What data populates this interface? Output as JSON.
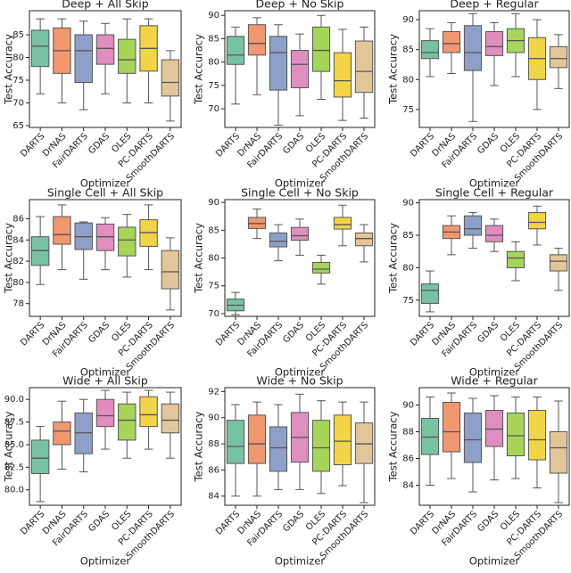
{
  "chart_data": [
    {
      "type": "box",
      "title": "Deep + All Skip",
      "x_label": "Optimizer",
      "y_label": "Test Accuracy",
      "categories": [
        "DARTS",
        "DrNAS",
        "FairDARTS",
        "GDAS",
        "OLES",
        "PC-DARTS",
        "SmoothDARTS"
      ],
      "colors": [
        "#78c2a4",
        "#f0976f",
        "#8ea0c8",
        "#e08ebf",
        "#a6d55a",
        "#f2d447",
        "#e2c69a"
      ],
      "values": [
        [
          72,
          78,
          82.5,
          86,
          88.5
        ],
        [
          70,
          76.5,
          81.5,
          86.5,
          88.5
        ],
        [
          68.5,
          74.5,
          81.5,
          85,
          88
        ],
        [
          72,
          78.5,
          82,
          85,
          87.5
        ],
        [
          70,
          76.5,
          79.5,
          84,
          88.5
        ],
        [
          70,
          77,
          82,
          87,
          88.5
        ],
        [
          66,
          71.5,
          74.5,
          79.5,
          81.5
        ]
      ],
      "ylim": [
        64.6,
        90.3
      ],
      "yticks": [
        65,
        70,
        75,
        80,
        85
      ]
    },
    {
      "type": "box",
      "title": "Deep + No Skip",
      "x_label": "Optimizer",
      "y_label": "Test Accuracy",
      "categories": [
        "DARTS",
        "DrNAS",
        "FairDARTS",
        "GDAS",
        "OLES",
        "PC-DARTS",
        "SmoothDARTS"
      ],
      "colors": [
        "#78c2a4",
        "#f0976f",
        "#8ea0c8",
        "#e08ebf",
        "#a6d55a",
        "#f2d447",
        "#e2c69a"
      ],
      "values": [
        [
          71,
          79.5,
          81.5,
          85.5,
          87.5
        ],
        [
          73,
          81.5,
          84,
          88,
          89.5
        ],
        [
          66.5,
          74,
          82,
          85.5,
          88
        ],
        [
          68.5,
          74.5,
          79.5,
          82.5,
          86
        ],
        [
          72,
          78,
          82.5,
          87.5,
          90
        ],
        [
          67.5,
          72.5,
          76,
          82,
          87
        ],
        [
          68,
          73.5,
          78,
          84.5,
          87.5
        ]
      ],
      "ylim": [
        66,
        91
      ],
      "yticks": [
        70,
        75,
        80,
        85,
        90
      ]
    },
    {
      "type": "box",
      "title": "Deep + Regular",
      "x_label": "Optimizer",
      "y_label": "Test Accuracy",
      "categories": [
        "DARTS",
        "DrNAS",
        "FairDARTS",
        "GDAS",
        "OLES",
        "PC-DARTS",
        "SmoothDARTS"
      ],
      "colors": [
        "#78c2a4",
        "#f0976f",
        "#8ea0c8",
        "#e08ebf",
        "#a6d55a",
        "#f2d447",
        "#e2c69a"
      ],
      "values": [
        [
          80.5,
          83.5,
          84.5,
          86.5,
          88.5
        ],
        [
          81,
          84.5,
          86,
          88,
          89.5
        ],
        [
          73,
          81.5,
          84.5,
          89,
          91
        ],
        [
          79,
          84,
          85.5,
          88,
          89.5
        ],
        [
          80.5,
          84.5,
          86.5,
          88.5,
          91
        ],
        [
          75,
          80,
          83.5,
          87,
          90
        ],
        [
          78.5,
          82,
          83.5,
          85.5,
          87.5
        ]
      ],
      "ylim": [
        72,
        91.5
      ],
      "yticks": [
        75,
        80,
        85,
        90
      ]
    },
    {
      "type": "box",
      "title": "Single Cell + All Skip",
      "x_label": "Optimizer",
      "y_label": "Test Accuracy",
      "categories": [
        "DARTS",
        "DrNAS",
        "FairDARTS",
        "GDAS",
        "OLES",
        "PC-DARTS",
        "SmoothDARTS"
      ],
      "colors": [
        "#78c2a4",
        "#f0976f",
        "#8ea0c8",
        "#e08ebf",
        "#a6d55a",
        "#f2d447",
        "#e2c69a"
      ],
      "values": [
        [
          79.8,
          81.6,
          83,
          84.3,
          86.2
        ],
        [
          81.2,
          83.6,
          84.5,
          86.2,
          87.3
        ],
        [
          80.3,
          83.1,
          84.3,
          85.6,
          85.7
        ],
        [
          81.2,
          83,
          84.3,
          85.5,
          86.1
        ],
        [
          80.5,
          82.5,
          84,
          85.2,
          86.4
        ],
        [
          81.2,
          83.4,
          84.7,
          85.9,
          87.3
        ],
        [
          77.4,
          79.4,
          81,
          83,
          84.2
        ]
      ],
      "ylim": [
        76.8,
        87.8
      ],
      "yticks": [
        78,
        80,
        82,
        84,
        86
      ]
    },
    {
      "type": "box",
      "title": "Single Cell + No Skip",
      "x_label": "Optimizer",
      "y_label": "Test Accuracy",
      "categories": [
        "DARTS",
        "DrNAS",
        "FairDARTS",
        "GDAS",
        "OLES",
        "PC-DARTS",
        "SmoothDARTS"
      ],
      "colors": [
        "#78c2a4",
        "#f0976f",
        "#8ea0c8",
        "#e08ebf",
        "#a6d55a",
        "#f2d447",
        "#e2c69a"
      ],
      "values": [
        [
          69.8,
          70.5,
          71.5,
          72.6,
          73.8
        ],
        [
          83.5,
          85.3,
          86.2,
          87.3,
          88.8
        ],
        [
          79.5,
          82,
          83,
          84.5,
          86
        ],
        [
          80.5,
          83.2,
          84,
          85.5,
          87
        ],
        [
          75.3,
          77.3,
          78,
          79.2,
          80.5
        ],
        [
          82.2,
          85.2,
          86,
          87.3,
          89.5
        ],
        [
          79.3,
          82.2,
          83.5,
          84.5,
          86
        ]
      ],
      "ylim": [
        69.5,
        90.5
      ],
      "yticks": [
        70,
        75,
        80,
        85,
        90
      ]
    },
    {
      "type": "box",
      "title": "Single Cell + Regular",
      "x_label": "Optimizer",
      "y_label": "Test Accuracy",
      "categories": [
        "DARTS",
        "DrNAS",
        "FairDARTS",
        "GDAS",
        "OLES",
        "PC-DARTS",
        "SmoothDARTS"
      ],
      "colors": [
        "#78c2a4",
        "#f0976f",
        "#8ea0c8",
        "#e08ebf",
        "#a6d55a",
        "#f2d447",
        "#e2c69a"
      ],
      "values": [
        [
          73.2,
          74.5,
          76.5,
          77.5,
          79.5
        ],
        [
          82,
          84.5,
          85.5,
          86.5,
          88
        ],
        [
          83,
          85,
          86,
          88,
          88.5
        ],
        [
          82.5,
          84,
          85,
          86.5,
          87.5
        ],
        [
          78,
          80,
          81.5,
          82.5,
          84
        ],
        [
          83.5,
          86,
          87,
          88.5,
          89.5
        ],
        [
          76.5,
          79.5,
          81,
          82,
          83
        ]
      ],
      "ylim": [
        72.5,
        90.5
      ],
      "yticks": [
        75,
        80,
        85,
        90
      ]
    },
    {
      "type": "box",
      "title": "Wide + All Skip",
      "x_label": "Optimizer",
      "y_label": "Test Accuracy",
      "categories": [
        "DARTS",
        "DrNAS",
        "FairDARTS",
        "GDAS",
        "OLES",
        "PC-DARTS",
        "SmoothDARTS"
      ],
      "colors": [
        "#78c2a4",
        "#f0976f",
        "#8ea0c8",
        "#e08ebf",
        "#a6d55a",
        "#f2d447",
        "#e2c69a"
      ],
      "values": [
        [
          78.7,
          81.8,
          83.5,
          85.5,
          87
        ],
        [
          82.3,
          85,
          86.5,
          87.5,
          89.8
        ],
        [
          82,
          84,
          86.3,
          88.5,
          90
        ],
        [
          84.5,
          87,
          88.2,
          90,
          91
        ],
        [
          83.5,
          85.5,
          87.7,
          89.5,
          90.8
        ],
        [
          84.5,
          87,
          88.3,
          90.3,
          91
        ],
        [
          83.5,
          86.3,
          87.7,
          89.5,
          90.8
        ]
      ],
      "ylim": [
        78.3,
        91.3
      ],
      "yticks": [
        {
          "value": 80,
          "label": "80.0"
        },
        82.5,
        {
          "value": 85,
          "label": "85.0"
        },
        87.5,
        {
          "value": 90,
          "label": "90.0"
        }
      ]
    },
    {
      "type": "box",
      "title": "Wide + No Skip",
      "x_label": "Optimizer",
      "y_label": "Test Accuracy",
      "categories": [
        "DARTS",
        "DrNAS",
        "FairDARTS",
        "GDAS",
        "OLES",
        "PC-DARTS",
        "SmoothDARTS"
      ],
      "colors": [
        "#78c2a4",
        "#f0976f",
        "#8ea0c8",
        "#e08ebf",
        "#a6d55a",
        "#f2d447",
        "#e2c69a"
      ],
      "values": [
        [
          84,
          86.5,
          87.8,
          89.8,
          91
        ],
        [
          84,
          86.5,
          88,
          90.2,
          91.2
        ],
        [
          84.5,
          85.9,
          87.7,
          89.3,
          91
        ],
        [
          84.5,
          86.6,
          88.5,
          90.4,
          91.8
        ],
        [
          84.2,
          85.9,
          87.7,
          89.8,
          91.3
        ],
        [
          84.8,
          86.4,
          88.2,
          90.2,
          91.2
        ],
        [
          83.5,
          86.5,
          88,
          89.6,
          91.2
        ]
      ],
      "ylim": [
        83.3,
        92.3
      ],
      "yticks": [
        84,
        86,
        88,
        90,
        92
      ]
    },
    {
      "type": "box",
      "title": "Wide + Regular",
      "x_label": "Optimizer",
      "y_label": "Test Accuracy",
      "categories": [
        "DARTS",
        "DrNAS",
        "FairDARTS",
        "GDAS",
        "OLES",
        "PC-DARTS",
        "SmoothDARTS"
      ],
      "colors": [
        "#78c2a4",
        "#f0976f",
        "#8ea0c8",
        "#e08ebf",
        "#a6d55a",
        "#f2d447",
        "#e2c69a"
      ],
      "values": [
        [
          84,
          86.3,
          87.6,
          89,
          90.6
        ],
        [
          84.5,
          86.5,
          88,
          90.2,
          90.9
        ],
        [
          83.5,
          85.7,
          87.4,
          89.4,
          90.5
        ],
        [
          84.4,
          86.9,
          88.2,
          89.6,
          90.7
        ],
        [
          84.5,
          86.2,
          87.7,
          89.4,
          90.6
        ],
        [
          83.8,
          85.9,
          87.4,
          89.6,
          90.6
        ],
        [
          82.7,
          84.9,
          86.8,
          88,
          90.3
        ]
      ],
      "ylim": [
        82.5,
        91.3
      ],
      "yticks": [
        84,
        86,
        88,
        90
      ]
    }
  ]
}
